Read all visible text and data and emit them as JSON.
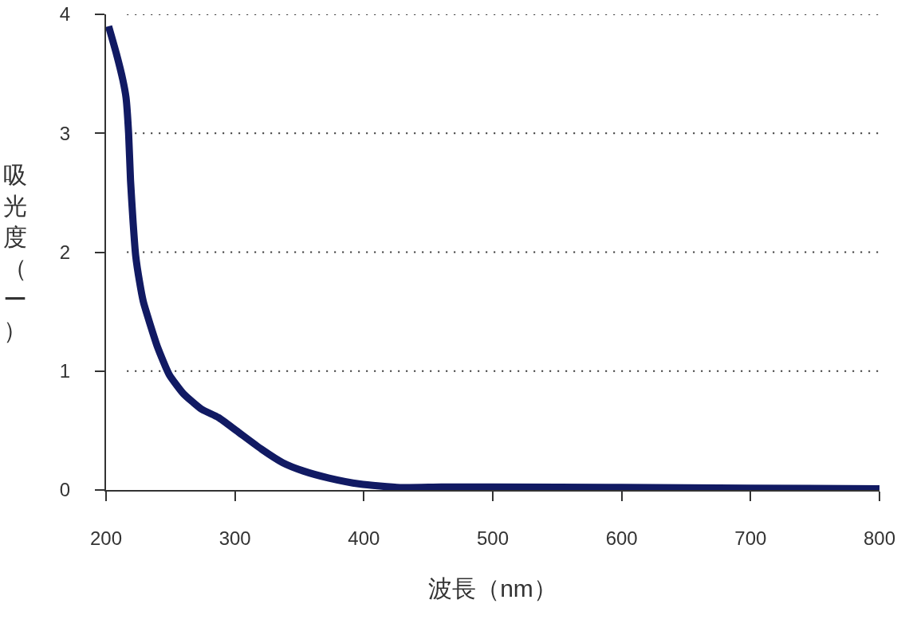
{
  "chart_data": {
    "type": "line",
    "xlabel": "波長（nm）",
    "ylabel": "吸光度（ー）",
    "x": [
      202,
      208,
      213,
      215.5,
      217.5,
      219,
      221,
      223,
      226,
      229,
      234,
      240,
      249,
      260,
      274,
      287,
      301,
      321,
      337,
      353,
      373,
      397,
      428,
      460,
      500,
      600,
      700,
      800
    ],
    "series": [
      {
        "color": "#111a63",
        "values": [
          3.9,
          3.67,
          3.45,
          3.3,
          3.0,
          2.6,
          2.25,
          1.97,
          1.75,
          1.58,
          1.4,
          1.2,
          0.97,
          0.81,
          0.68,
          0.61,
          0.5,
          0.34,
          0.23,
          0.16,
          0.1,
          0.05,
          0.02,
          0.025,
          0.025,
          0.022,
          0.015,
          0.01
        ]
      }
    ],
    "xlim": [
      200,
      800
    ],
    "xticks": [
      200,
      300,
      400,
      500,
      600,
      700,
      800
    ],
    "ylim": [
      0,
      4
    ],
    "yticks": [
      0,
      1,
      2,
      3,
      4
    ],
    "grid": "y",
    "marker": "none",
    "line_style": "solid"
  }
}
